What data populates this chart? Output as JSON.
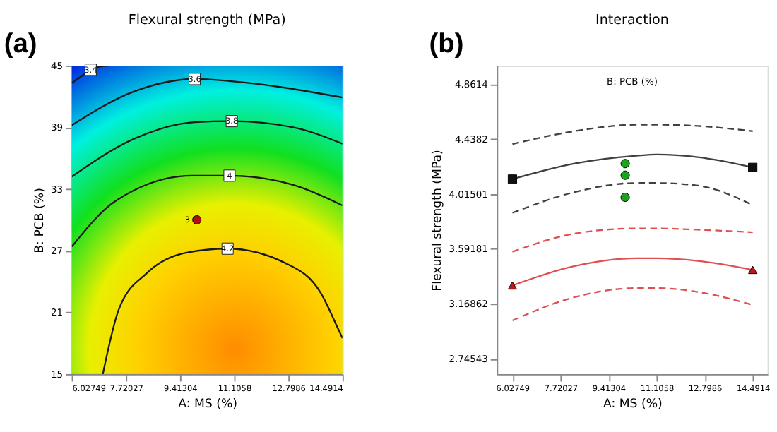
{
  "chart_data": [
    {
      "type": "line",
      "title": "Flexural strength (MPa)",
      "xlabel": "A: MS (%)",
      "ylabel": "B: PCB (%)",
      "xlim": [
        6.02749,
        14.4914
      ],
      "xticks": [
        6.02749,
        7.72027,
        9.41304,
        11.1058,
        12.7986,
        14.4914
      ],
      "ylim": [
        15,
        45
      ],
      "yticks": [
        15,
        21,
        27,
        33,
        39,
        45
      ],
      "grid": false,
      "legend": false,
      "annotations": [
        "(a)",
        {
          "text": "3",
          "x": 9.94,
          "y": 30
        }
      ],
      "series": [
        {
          "name": "3.4",
          "color": "#1a1a1a",
          "line_style": "solid",
          "x": [
            6.03,
            6.3,
            6.62,
            6.9,
            7.2
          ],
          "values": [
            43.3,
            43.9,
            44.6,
            44.9,
            45
          ]
        },
        {
          "name": "3.6",
          "color": "#1a1a1a",
          "line_style": "solid",
          "x": [
            6.03,
            7.99,
            9.87,
            10.96,
            14.49
          ],
          "values": [
            39.2,
            42.5,
            43.7,
            43.5,
            41.9
          ]
        },
        {
          "name": "3.8",
          "color": "#1a1a1a",
          "line_style": "solid",
          "x": [
            6.03,
            7.99,
            9.87,
            11.03,
            12.95,
            14.49
          ],
          "values": [
            34.2,
            37.9,
            39.5,
            39.6,
            39.0,
            37.4
          ]
        },
        {
          "name": "4",
          "color": "#1a1a1a",
          "line_style": "solid",
          "x": [
            6.03,
            7.38,
            9.79,
            10.96,
            12.95,
            14.49
          ],
          "values": [
            27.4,
            31.8,
            34.3,
            34.3,
            33.4,
            31.4
          ]
        },
        {
          "name": "4.2",
          "color": "#1a1a1a",
          "line_style": "solid",
          "x": [
            7.0,
            7.5,
            8.37,
            9.6,
            10.9,
            12.7,
            13.81,
            14.37,
            14.49
          ],
          "values": [
            15,
            21.3,
            24.8,
            26.8,
            27.2,
            25.8,
            22.9,
            19.3,
            18.5
          ]
        },
        {
          "type": "scatter",
          "marker": "circle",
          "color": "#b01010",
          "x": [
            9.94
          ],
          "values": [
            30
          ]
        }
      ]
    },
    {
      "type": "line",
      "title": "Interaction",
      "xlabel": "A: MS (%)",
      "ylabel": "Flexural strength (MPa)",
      "xlim": [
        5.479,
        15.011
      ],
      "xticks": [
        6.02749,
        7.72027,
        9.41304,
        11.1058,
        12.7986,
        14.4914
      ],
      "ylim": [
        2.627,
        5.005
      ],
      "yticks": [
        2.74543,
        3.16862,
        3.59181,
        4.01501,
        4.4382,
        4.8614
      ],
      "grid": false,
      "legend": false,
      "annotations": [
        "(b)",
        "B: PCB (%)"
      ],
      "series": [
        {
          "color": "#404040",
          "line_style": "solid",
          "x": [
            6.03,
            8.22,
            10.39,
            11.11,
            12.56,
            14.49
          ],
          "values": [
            4.13,
            4.25,
            4.31,
            4.32,
            4.3,
            4.22
          ]
        },
        {
          "color": "#404040",
          "line_style": "dashed",
          "x": [
            6.03,
            8.22,
            10.39,
            11.11,
            12.56,
            14.49
          ],
          "values": [
            3.87,
            4.03,
            4.1,
            4.1,
            4.08,
            3.93
          ]
        },
        {
          "color": "#404040",
          "line_style": "dashed",
          "x": [
            6.03,
            8.22,
            10.39,
            11.11,
            12.56,
            14.49
          ],
          "values": [
            4.4,
            4.5,
            4.55,
            4.55,
            4.54,
            4.5
          ]
        },
        {
          "color": "#e05050",
          "line_style": "solid",
          "x": [
            6.03,
            8.22,
            10.39,
            11.11,
            12.56,
            14.49
          ],
          "values": [
            3.31,
            3.46,
            3.52,
            3.52,
            3.5,
            3.43
          ]
        },
        {
          "color": "#e05050",
          "line_style": "dashed",
          "x": [
            6.03,
            8.22,
            10.39,
            11.11,
            12.56,
            14.49
          ],
          "values": [
            3.04,
            3.22,
            3.29,
            3.29,
            3.26,
            3.16
          ]
        },
        {
          "color": "#e05050",
          "line_style": "dashed",
          "x": [
            6.03,
            8.22,
            10.39,
            11.11,
            12.56,
            14.49
          ],
          "values": [
            3.57,
            3.71,
            3.75,
            3.75,
            3.74,
            3.72
          ]
        },
        {
          "type": "scatter",
          "marker": "square",
          "color": "#111111",
          "x": [
            6.03,
            14.49
          ],
          "values": [
            4.13,
            4.22
          ]
        },
        {
          "type": "scatter",
          "marker": "triangle",
          "color": "#c01818",
          "x": [
            6.03,
            14.49
          ],
          "values": [
            3.31,
            3.43
          ]
        },
        {
          "type": "scatter",
          "marker": "circle",
          "color": "#20a020",
          "x": [
            10.0,
            10.0,
            10.0
          ],
          "values": [
            4.25,
            4.16,
            3.99
          ]
        }
      ]
    }
  ]
}
